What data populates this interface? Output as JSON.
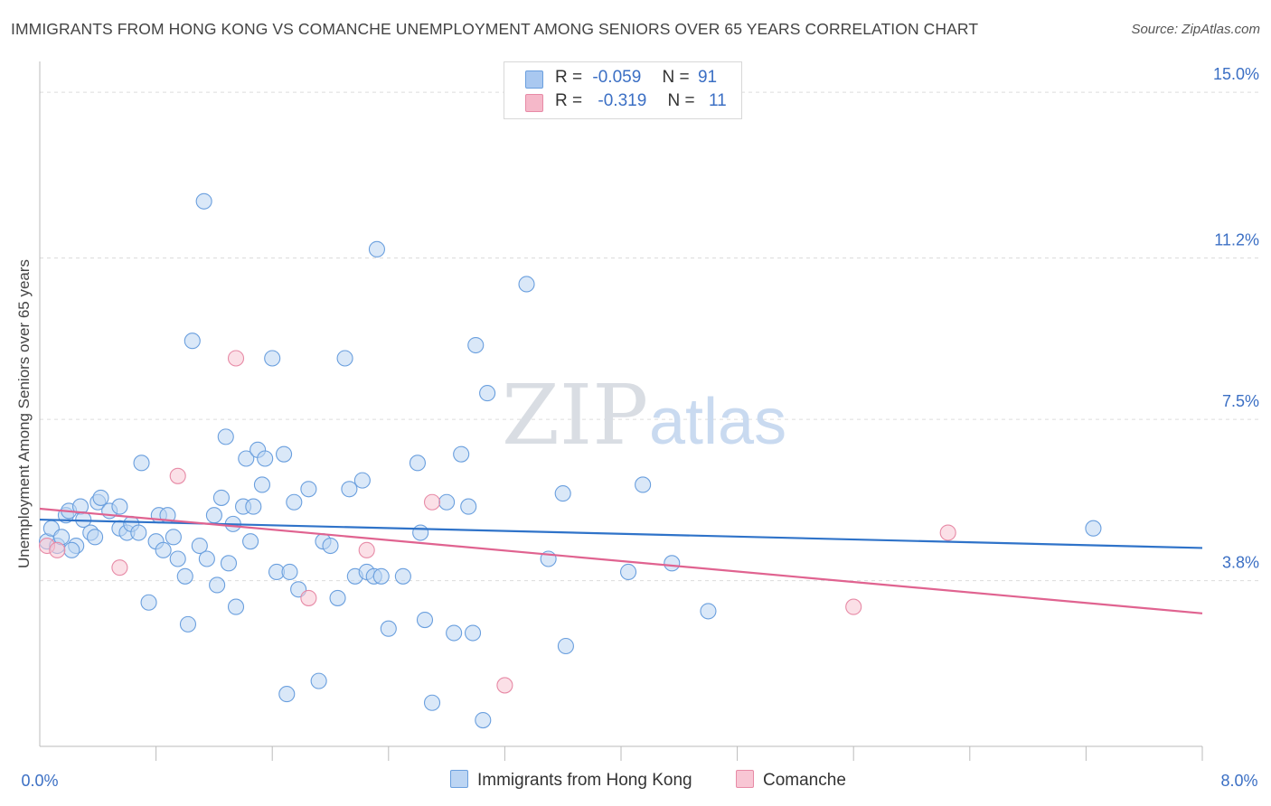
{
  "title": "IMMIGRANTS FROM HONG KONG VS COMANCHE UNEMPLOYMENT AMONG SENIORS OVER 65 YEARS CORRELATION CHART",
  "source": "Source: ZipAtlas.com",
  "watermark": {
    "zip": "ZIP",
    "atlas": "atlas"
  },
  "legend_top": [
    {
      "r_label": "R =",
      "r_value": "-0.059",
      "n_label": "N =",
      "n_value": "91",
      "color": "#a9c8f0"
    },
    {
      "r_label": "R =",
      "r_value": "-0.319",
      "n_label": "N =",
      "n_value": "11",
      "color": "#f5b8c9"
    }
  ],
  "chart_data": {
    "type": "scatter",
    "title": "IMMIGRANTS FROM HONG KONG VS COMANCHE UNEMPLOYMENT AMONG SENIORS OVER 65 YEARS CORRELATION CHART",
    "xlabel": "",
    "ylabel": "Unemployment Among Seniors over 65 years",
    "xlim": [
      0,
      8
    ],
    "ylim": [
      0,
      15.5
    ],
    "x_tick_labels": [
      "0.0%",
      "8.0%"
    ],
    "y_ticks": [
      3.8,
      7.5,
      11.2,
      15.0
    ],
    "y_tick_labels": [
      "3.8%",
      "7.5%",
      "11.2%",
      "15.0%"
    ],
    "grid": "horizontal dashed",
    "legend_position": "bottom",
    "series": [
      {
        "name": "Immigrants from Hong Kong",
        "color": "#6a9fde",
        "fill": "#bcd5f3",
        "trend": {
          "x": [
            0.0,
            8.0
          ],
          "y": [
            5.2,
            4.55
          ]
        },
        "points": [
          [
            0.05,
            4.7
          ],
          [
            0.08,
            5.0
          ],
          [
            0.12,
            4.6
          ],
          [
            0.15,
            4.8
          ],
          [
            0.18,
            5.3
          ],
          [
            0.2,
            5.4
          ],
          [
            0.25,
            4.6
          ],
          [
            0.28,
            5.5
          ],
          [
            0.3,
            5.2
          ],
          [
            0.35,
            4.9
          ],
          [
            0.4,
            5.6
          ],
          [
            0.42,
            5.7
          ],
          [
            0.48,
            5.4
          ],
          [
            0.55,
            5.0
          ],
          [
            0.6,
            4.9
          ],
          [
            0.63,
            5.1
          ],
          [
            0.7,
            6.5
          ],
          [
            0.75,
            3.3
          ],
          [
            0.8,
            4.7
          ],
          [
            0.82,
            5.3
          ],
          [
            0.85,
            4.5
          ],
          [
            0.88,
            5.3
          ],
          [
            0.92,
            4.8
          ],
          [
            0.95,
            4.3
          ],
          [
            1.0,
            3.9
          ],
          [
            1.02,
            2.8
          ],
          [
            1.05,
            9.3
          ],
          [
            1.1,
            4.6
          ],
          [
            1.13,
            12.5
          ],
          [
            1.15,
            4.3
          ],
          [
            1.2,
            5.3
          ],
          [
            1.22,
            3.7
          ],
          [
            1.25,
            5.7
          ],
          [
            1.28,
            7.1
          ],
          [
            1.3,
            4.2
          ],
          [
            1.33,
            5.1
          ],
          [
            1.35,
            3.2
          ],
          [
            1.4,
            5.5
          ],
          [
            1.42,
            6.6
          ],
          [
            1.45,
            4.7
          ],
          [
            1.47,
            5.5
          ],
          [
            1.5,
            6.8
          ],
          [
            1.53,
            6.0
          ],
          [
            1.55,
            6.6
          ],
          [
            1.6,
            8.9
          ],
          [
            1.63,
            4.0
          ],
          [
            1.68,
            6.7
          ],
          [
            1.72,
            4.0
          ],
          [
            1.75,
            5.6
          ],
          [
            1.78,
            3.6
          ],
          [
            1.85,
            5.9
          ],
          [
            1.92,
            1.5
          ],
          [
            1.95,
            4.7
          ],
          [
            2.0,
            4.6
          ],
          [
            2.05,
            3.4
          ],
          [
            2.1,
            8.9
          ],
          [
            2.13,
            5.9
          ],
          [
            2.17,
            3.9
          ],
          [
            2.22,
            6.1
          ],
          [
            2.25,
            4.0
          ],
          [
            2.3,
            3.9
          ],
          [
            2.32,
            11.4
          ],
          [
            2.35,
            3.9
          ],
          [
            2.4,
            2.7
          ],
          [
            2.5,
            3.9
          ],
          [
            2.6,
            6.5
          ],
          [
            2.62,
            4.9
          ],
          [
            2.65,
            2.9
          ],
          [
            2.7,
            1.0
          ],
          [
            2.8,
            5.6
          ],
          [
            2.9,
            6.7
          ],
          [
            2.95,
            5.5
          ],
          [
            2.98,
            2.6
          ],
          [
            3.0,
            9.2
          ],
          [
            3.05,
            0.6
          ],
          [
            3.08,
            8.1
          ],
          [
            3.35,
            10.6
          ],
          [
            3.5,
            4.3
          ],
          [
            3.6,
            5.8
          ],
          [
            3.62,
            2.3
          ],
          [
            4.05,
            4.0
          ],
          [
            4.15,
            6.0
          ],
          [
            4.35,
            4.2
          ],
          [
            4.6,
            3.1
          ],
          [
            7.25,
            5.0
          ],
          [
            0.55,
            5.5
          ],
          [
            0.38,
            4.8
          ],
          [
            0.68,
            4.9
          ],
          [
            1.7,
            1.2
          ],
          [
            2.85,
            2.6
          ],
          [
            0.22,
            4.5
          ]
        ]
      },
      {
        "name": "Comanche",
        "color": "#e78aa6",
        "fill": "#f8c6d4",
        "trend": {
          "x": [
            0.0,
            8.0
          ],
          "y": [
            5.45,
            3.05
          ]
        },
        "points": [
          [
            0.05,
            4.6
          ],
          [
            0.12,
            4.5
          ],
          [
            0.55,
            4.1
          ],
          [
            0.95,
            6.2
          ],
          [
            1.35,
            8.9
          ],
          [
            1.85,
            3.4
          ],
          [
            2.25,
            4.5
          ],
          [
            2.7,
            5.6
          ],
          [
            3.2,
            1.4
          ],
          [
            5.6,
            3.2
          ],
          [
            6.25,
            4.9
          ]
        ]
      }
    ]
  }
}
